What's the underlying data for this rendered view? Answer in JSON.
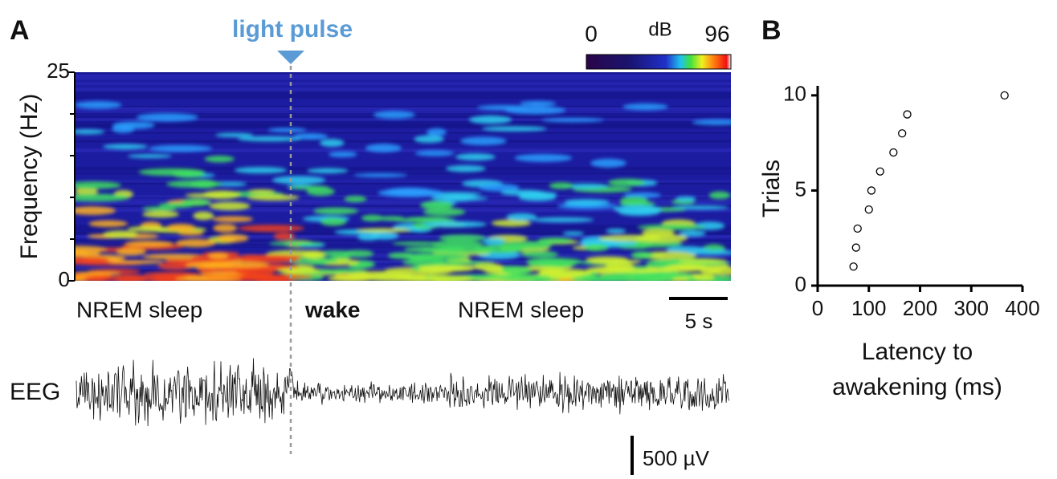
{
  "chart_data": [
    {
      "type": "spectrogram",
      "panel": "A",
      "ylabel": "Frequency (Hz)",
      "ylim": [
        0,
        25
      ],
      "yticks": [
        0,
        25
      ],
      "annotation": "light pulse",
      "colorbar": {
        "label": "dB",
        "lim": [
          0,
          96
        ]
      },
      "states": [
        "NREM sleep",
        "wake",
        "NREM sleep"
      ],
      "time_scale": "5 s",
      "trace_label": "EEG",
      "amplitude_scale": "500 µV"
    },
    {
      "type": "scatter",
      "panel": "B",
      "ylabel": "Trials",
      "xlabel": [
        "Latency to",
        "awakening (ms)"
      ],
      "x": [
        70,
        75,
        78,
        100,
        105,
        122,
        148,
        165,
        175,
        365
      ],
      "values": [
        1,
        2,
        3,
        4,
        5,
        6,
        7,
        8,
        9,
        10
      ],
      "xlim": [
        0,
        400
      ],
      "xticks": [
        0,
        100,
        200,
        300,
        400
      ],
      "ylim": [
        0,
        10.5
      ],
      "yticks": [
        0,
        5,
        10
      ],
      "color": "#ffffff"
    }
  ]
}
